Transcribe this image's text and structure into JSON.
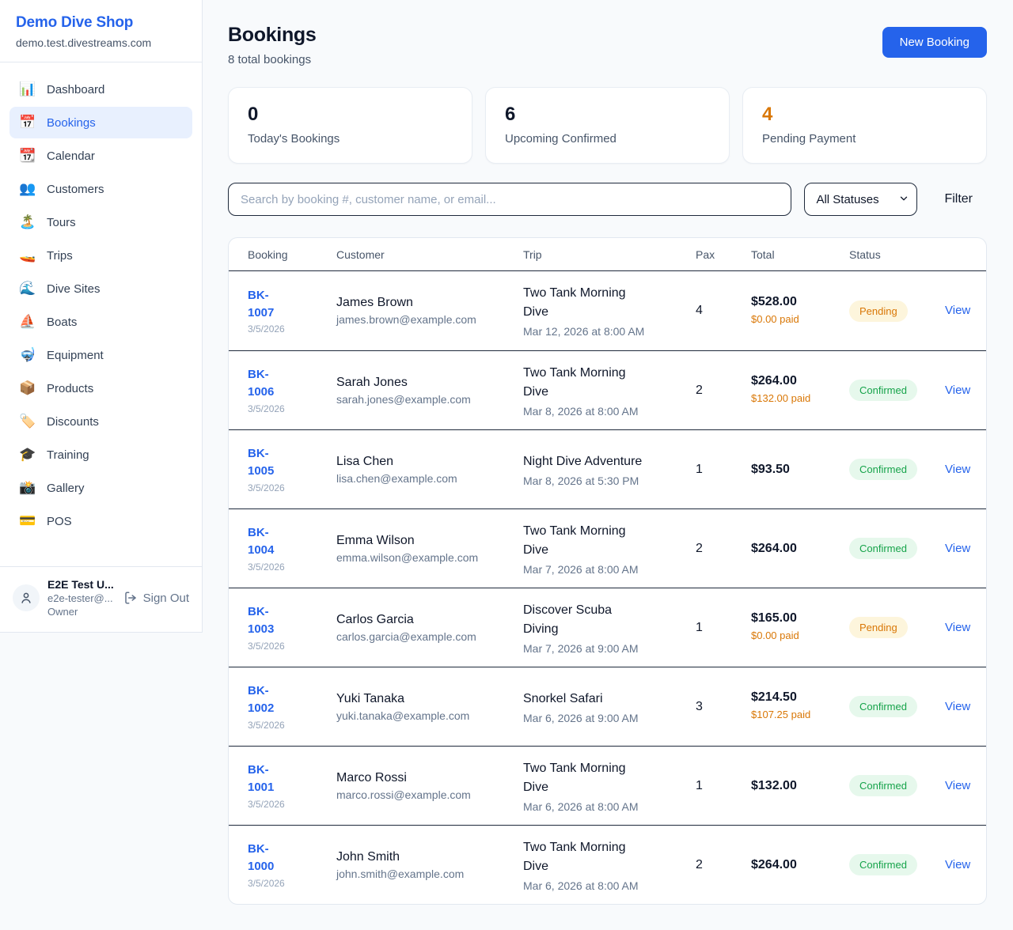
{
  "sidebar": {
    "brand": {
      "name": "Demo Dive Shop",
      "domain": "demo.test.divestreams.com"
    },
    "nav": [
      {
        "label": "Dashboard",
        "icon": "📊",
        "active": false
      },
      {
        "label": "Bookings",
        "icon": "📅",
        "active": true
      },
      {
        "label": "Calendar",
        "icon": "📆",
        "active": false
      },
      {
        "label": "Customers",
        "icon": "👥",
        "active": false
      },
      {
        "label": "Tours",
        "icon": "🏝️",
        "active": false
      },
      {
        "label": "Trips",
        "icon": "🚤",
        "active": false
      },
      {
        "label": "Dive Sites",
        "icon": "🌊",
        "active": false
      },
      {
        "label": "Boats",
        "icon": "⛵",
        "active": false
      },
      {
        "label": "Equipment",
        "icon": "🤿",
        "active": false
      },
      {
        "label": "Products",
        "icon": "📦",
        "active": false
      },
      {
        "label": "Discounts",
        "icon": "🏷️",
        "active": false
      },
      {
        "label": "Training",
        "icon": "🎓",
        "active": false
      },
      {
        "label": "Gallery",
        "icon": "📸",
        "active": false
      },
      {
        "label": "POS",
        "icon": "💳",
        "active": false
      }
    ],
    "user": {
      "name": "E2E Test U...",
      "email": "e2e-tester@...",
      "role": "Owner",
      "sign_out_label": "Sign Out"
    }
  },
  "header": {
    "title": "Bookings",
    "subtitle": "8 total bookings",
    "new_booking_label": "New Booking"
  },
  "stats": [
    {
      "value": "0",
      "label": "Today's Bookings",
      "accent": false
    },
    {
      "value": "6",
      "label": "Upcoming Confirmed",
      "accent": false
    },
    {
      "value": "4",
      "label": "Pending Payment",
      "accent": true
    }
  ],
  "controls": {
    "search_placeholder": "Search by booking #, customer name, or email...",
    "status_filter_value": "All Statuses",
    "filter_label": "Filter"
  },
  "table": {
    "columns": [
      "Booking",
      "Customer",
      "Trip",
      "Pax",
      "Total",
      "Status"
    ],
    "view_label": "View",
    "rows": [
      {
        "id": "BK-1007",
        "date": "3/5/2026",
        "customer_name": "James Brown",
        "customer_email": "james.brown@example.com",
        "trip_name": "Two Tank Morning Dive",
        "trip_datetime": "Mar 12, 2026 at 8:00 AM",
        "pax": "4",
        "total": "$528.00",
        "paid": "$0.00 paid",
        "status": "Pending"
      },
      {
        "id": "BK-1006",
        "date": "3/5/2026",
        "customer_name": "Sarah Jones",
        "customer_email": "sarah.jones@example.com",
        "trip_name": "Two Tank Morning Dive",
        "trip_datetime": "Mar 8, 2026 at 8:00 AM",
        "pax": "2",
        "total": "$264.00",
        "paid": "$132.00 paid",
        "status": "Confirmed"
      },
      {
        "id": "BK-1005",
        "date": "3/5/2026",
        "customer_name": "Lisa Chen",
        "customer_email": "lisa.chen@example.com",
        "trip_name": "Night Dive Adventure",
        "trip_datetime": "Mar 8, 2026 at 5:30 PM",
        "pax": "1",
        "total": "$93.50",
        "paid": "",
        "status": "Confirmed"
      },
      {
        "id": "BK-1004",
        "date": "3/5/2026",
        "customer_name": "Emma Wilson",
        "customer_email": "emma.wilson@example.com",
        "trip_name": "Two Tank Morning Dive",
        "trip_datetime": "Mar 7, 2026 at 8:00 AM",
        "pax": "2",
        "total": "$264.00",
        "paid": "",
        "status": "Confirmed"
      },
      {
        "id": "BK-1003",
        "date": "3/5/2026",
        "customer_name": "Carlos Garcia",
        "customer_email": "carlos.garcia@example.com",
        "trip_name": "Discover Scuba Diving",
        "trip_datetime": "Mar 7, 2026 at 9:00 AM",
        "pax": "1",
        "total": "$165.00",
        "paid": "$0.00 paid",
        "status": "Pending"
      },
      {
        "id": "BK-1002",
        "date": "3/5/2026",
        "customer_name": "Yuki Tanaka",
        "customer_email": "yuki.tanaka@example.com",
        "trip_name": "Snorkel Safari",
        "trip_datetime": "Mar 6, 2026 at 9:00 AM",
        "pax": "3",
        "total": "$214.50",
        "paid": "$107.25 paid",
        "status": "Confirmed"
      },
      {
        "id": "BK-1001",
        "date": "3/5/2026",
        "customer_name": "Marco Rossi",
        "customer_email": "marco.rossi@example.com",
        "trip_name": "Two Tank Morning Dive",
        "trip_datetime": "Mar 6, 2026 at 8:00 AM",
        "pax": "1",
        "total": "$132.00",
        "paid": "",
        "status": "Confirmed"
      },
      {
        "id": "BK-1000",
        "date": "3/5/2026",
        "customer_name": "John Smith",
        "customer_email": "john.smith@example.com",
        "trip_name": "Two Tank Morning Dive",
        "trip_datetime": "Mar 6, 2026 at 8:00 AM",
        "pax": "2",
        "total": "$264.00",
        "paid": "",
        "status": "Confirmed"
      }
    ]
  },
  "colors": {
    "accent_blue": "#2563eb",
    "pending_text": "#d97706",
    "confirmed_text": "#16a34a",
    "pending_bg": "#fdf5dc",
    "confirmed_bg": "#e6f8ec"
  }
}
